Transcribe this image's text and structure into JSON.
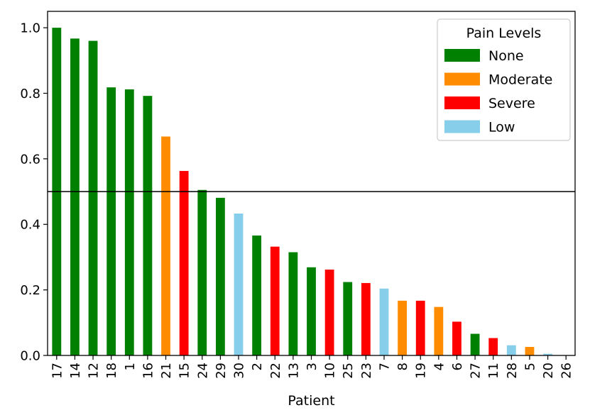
{
  "chart_data": {
    "type": "bar",
    "title": "",
    "xlabel": "Patient",
    "ylabel": "",
    "ylim": [
      0,
      1.05
    ],
    "yticks": [
      0.0,
      0.2,
      0.4,
      0.6,
      0.8,
      1.0
    ],
    "ytick_labels": [
      "0.0",
      "0.2",
      "0.4",
      "0.6",
      "0.8",
      "1.0"
    ],
    "categories": [
      "17",
      "14",
      "12",
      "18",
      "1",
      "16",
      "21",
      "15",
      "24",
      "29",
      "30",
      "2",
      "22",
      "13",
      "3",
      "10",
      "25",
      "23",
      "7",
      "8",
      "19",
      "4",
      "6",
      "27",
      "11",
      "28",
      "5",
      "20",
      "26"
    ],
    "values": [
      1.0,
      0.967,
      0.96,
      0.818,
      0.812,
      0.792,
      0.668,
      0.563,
      0.505,
      0.481,
      0.433,
      0.366,
      0.332,
      0.315,
      0.269,
      0.262,
      0.224,
      0.221,
      0.204,
      0.167,
      0.167,
      0.148,
      0.103,
      0.066,
      0.053,
      0.031,
      0.026,
      0.005,
      0.001
    ],
    "pain_levels": [
      "None",
      "None",
      "None",
      "None",
      "None",
      "None",
      "Moderate",
      "Severe",
      "None",
      "None",
      "Low",
      "None",
      "Severe",
      "None",
      "None",
      "Severe",
      "None",
      "Severe",
      "Low",
      "Moderate",
      "Severe",
      "Moderate",
      "Severe",
      "None",
      "Severe",
      "Low",
      "Moderate",
      "Low",
      "Low"
    ],
    "reference_line": 0.5,
    "grid": false,
    "legend": {
      "title": "Pain Levels",
      "placement": "top-right",
      "entries": [
        {
          "label": "None",
          "color": "#008000"
        },
        {
          "label": "Moderate",
          "color": "#ff8c00"
        },
        {
          "label": "Severe",
          "color": "#ff0000"
        },
        {
          "label": "Low",
          "color": "#87ceeb"
        }
      ]
    }
  }
}
